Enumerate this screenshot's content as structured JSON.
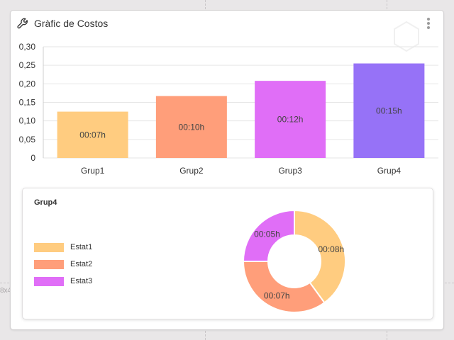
{
  "card": {
    "title": "Gràfic de Costos",
    "icons": {
      "title": "wrench-icon",
      "menu": "kebab-menu-icon",
      "watermark": "hexagon-icon"
    }
  },
  "background": {
    "dimension_fragment": "8x4"
  },
  "chart_data": [
    {
      "type": "bar",
      "title": "Gràfic de Costos",
      "categories": [
        "Grup1",
        "Grup2",
        "Grup3",
        "Grup4"
      ],
      "values": [
        0.125,
        0.167,
        0.208,
        0.255
      ],
      "data_labels": [
        "00:07h",
        "00:10h",
        "00:12h",
        "00:15h"
      ],
      "colors": [
        "#ffcc80",
        "#ff9e7a",
        "#e06ef7",
        "#9672f7"
      ],
      "ylim": [
        0,
        0.3
      ],
      "yticks": [
        0,
        0.05,
        0.1,
        0.15,
        0.2,
        0.25,
        0.3
      ],
      "ytick_labels": [
        "0",
        "0,05",
        "0,10",
        "0,15",
        "0,20",
        "0,25",
        "0,30"
      ],
      "grid": true,
      "legend": "none"
    },
    {
      "type": "pie",
      "variant": "donut",
      "title": "Grup4",
      "labels": [
        "Estat1",
        "Estat2",
        "Estat3"
      ],
      "values": [
        8,
        7,
        5
      ],
      "data_labels": [
        "00:08h",
        "00:07h",
        "00:05h"
      ],
      "colors": [
        "#ffcc80",
        "#ff9e7a",
        "#e06ef7"
      ],
      "legend": "left"
    }
  ]
}
